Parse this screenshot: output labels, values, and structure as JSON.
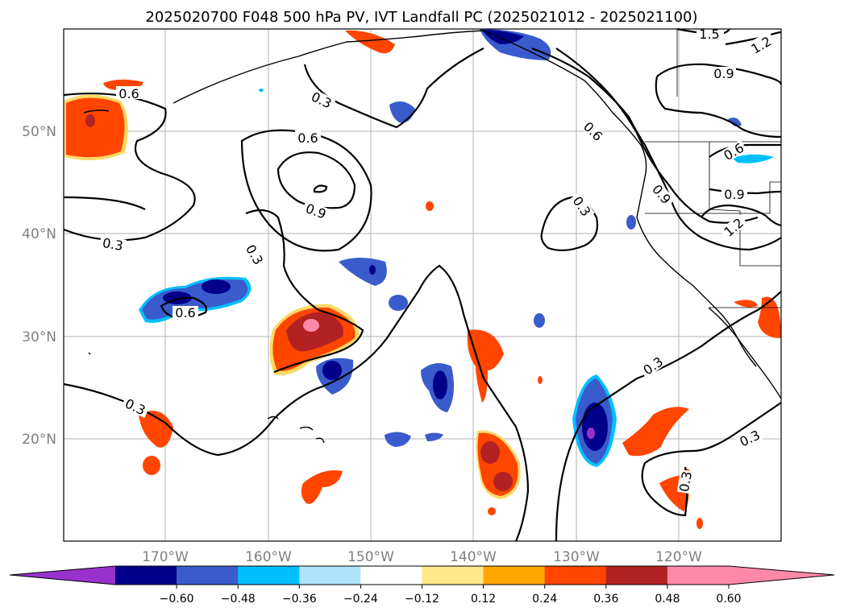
{
  "title": "2025020700 F048 500 hPa PV, IVT Landfall PC (2025021012 - 2025021100)",
  "lat_labels": [
    "50°N",
    "40°N",
    "30°N",
    "20°N"
  ],
  "lon_labels": [
    "170°W",
    "160°W",
    "150°W",
    "140°W",
    "130°W",
    "120°W"
  ],
  "contour_labels": [
    "1.5",
    "1.2",
    "0.9",
    "0.6",
    "0.3",
    "0.6",
    "0.6",
    "0.9",
    "0.3",
    "0.3",
    "0.6",
    "0.9",
    "0.9",
    "1.2",
    "0.3",
    "0.3",
    "0.3",
    "0.3",
    "0.3",
    "0.6",
    "0.3"
  ],
  "colorbar": {
    "ticks": [
      "−0.60",
      "−0.48",
      "−0.36",
      "−0.24",
      "−0.12",
      "0.12",
      "0.24",
      "0.36",
      "0.48",
      "0.60"
    ],
    "under_color": "#9932cc",
    "over_color": "#ff88aa",
    "colors": [
      "#00008b",
      "#3a5bcc",
      "#00bfff",
      "#aee4fa",
      "#ffffff",
      "#fde88a",
      "#ffa500",
      "#ff4500",
      "#b22222",
      "#ff88aa"
    ]
  }
}
